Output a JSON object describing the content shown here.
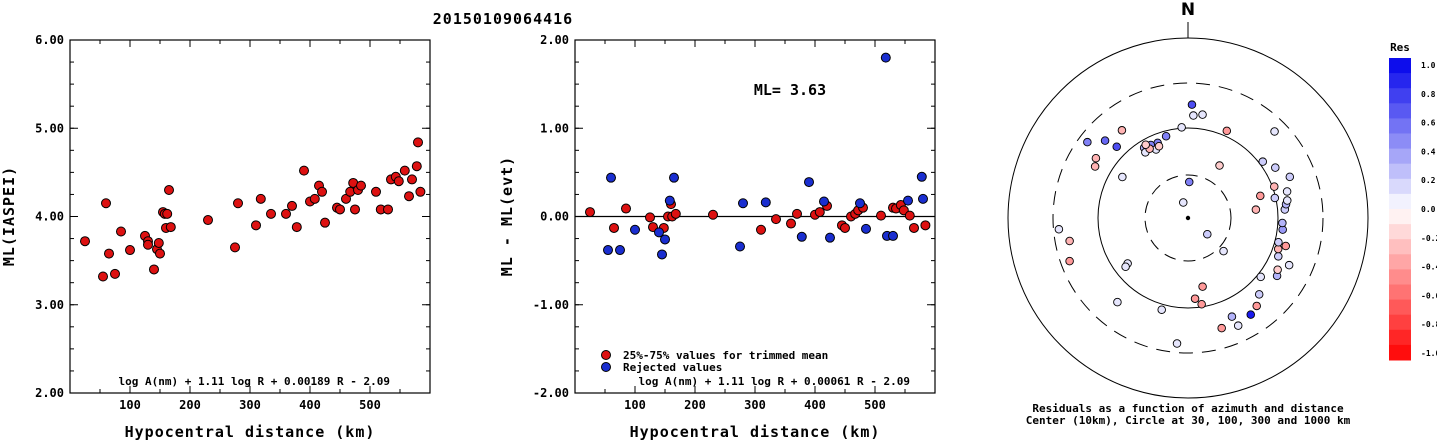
{
  "title": "20150109064416",
  "colors": {
    "accepted": "#dd1111",
    "rejected": "#1a2ed0",
    "ink": "#000000"
  },
  "chart_data": [
    {
      "type": "scatter",
      "xlabel": "Hypocentral distance (km)",
      "ylabel": "ML(IASPEI)",
      "xlim": [
        0,
        600
      ],
      "ylim": [
        2,
        6
      ],
      "xticks": [
        "100",
        "200",
        "300",
        "400",
        "500"
      ],
      "yticks": [
        "2.00",
        "3.00",
        "4.00",
        "5.00",
        "6.00"
      ],
      "formula": "log A(nm) + 1.11 log R + 0.00189 R - 2.09",
      "series": [
        {
          "points": [
            [
              25,
              3.72
            ],
            [
              55,
              3.32
            ],
            [
              60,
              4.15
            ],
            [
              65,
              3.58
            ],
            [
              75,
              3.35
            ],
            [
              85,
              3.83
            ],
            [
              100,
              3.62
            ],
            [
              125,
              3.78
            ],
            [
              130,
              3.72
            ],
            [
              130,
              3.68
            ],
            [
              140,
              3.4
            ],
            [
              145,
              3.63
            ],
            [
              148,
              3.7
            ],
            [
              150,
              3.58
            ],
            [
              155,
              4.05
            ],
            [
              158,
              4.03
            ],
            [
              160,
              3.87
            ],
            [
              162,
              4.03
            ],
            [
              165,
              4.3
            ],
            [
              168,
              3.88
            ],
            [
              230,
              3.96
            ],
            [
              275,
              3.65
            ],
            [
              280,
              4.15
            ],
            [
              310,
              3.9
            ],
            [
              318,
              4.2
            ],
            [
              335,
              4.03
            ],
            [
              360,
              4.03
            ],
            [
              370,
              4.12
            ],
            [
              378,
              3.88
            ],
            [
              390,
              4.52
            ],
            [
              400,
              4.17
            ],
            [
              408,
              4.2
            ],
            [
              415,
              4.35
            ],
            [
              420,
              4.28
            ],
            [
              425,
              3.93
            ],
            [
              445,
              4.1
            ],
            [
              450,
              4.08
            ],
            [
              460,
              4.2
            ],
            [
              467,
              4.28
            ],
            [
              472,
              4.38
            ],
            [
              475,
              4.08
            ],
            [
              480,
              4.3
            ],
            [
              485,
              4.35
            ],
            [
              510,
              4.28
            ],
            [
              518,
              4.08
            ],
            [
              530,
              4.08
            ],
            [
              535,
              4.42
            ],
            [
              543,
              4.45
            ],
            [
              548,
              4.4
            ],
            [
              558,
              4.52
            ],
            [
              565,
              4.23
            ],
            [
              570,
              4.42
            ],
            [
              578,
              4.57
            ],
            [
              580,
              4.84
            ],
            [
              584,
              4.28
            ]
          ]
        }
      ]
    },
    {
      "type": "scatter",
      "xlabel": "Hypocentral distance (km)",
      "ylabel": "ML - ML(evt)",
      "xlim": [
        0,
        600
      ],
      "ylim": [
        -2,
        2
      ],
      "xticks": [
        "100",
        "200",
        "300",
        "400",
        "500"
      ],
      "yticks": [
        "-2.00",
        "-1.00",
        "0.00",
        "1.00",
        "2.00"
      ],
      "annotation": "ML= 3.63",
      "legend": [
        "25%-75% values for trimmed mean",
        "Rejected values"
      ],
      "formula": "log A(nm) + 1.11 log R + 0.00061 R - 2.09",
      "series": [
        {
          "name": "25%-75% values for trimmed mean",
          "points": [
            [
              25,
              0.05
            ],
            [
              65,
              -0.13
            ],
            [
              85,
              0.09
            ],
            [
              125,
              -0.01
            ],
            [
              130,
              -0.12
            ],
            [
              148,
              -0.13
            ],
            [
              155,
              0.0
            ],
            [
              160,
              0.14
            ],
            [
              162,
              0.0
            ],
            [
              168,
              0.03
            ],
            [
              230,
              0.02
            ],
            [
              310,
              -0.15
            ],
            [
              335,
              -0.03
            ],
            [
              360,
              -0.08
            ],
            [
              370,
              0.03
            ],
            [
              400,
              0.02
            ],
            [
              408,
              0.05
            ],
            [
              420,
              0.12
            ],
            [
              445,
              -0.1
            ],
            [
              450,
              -0.13
            ],
            [
              460,
              0.0
            ],
            [
              467,
              0.03
            ],
            [
              472,
              0.07
            ],
            [
              480,
              0.1
            ],
            [
              510,
              0.01
            ],
            [
              530,
              0.1
            ],
            [
              535,
              0.09
            ],
            [
              543,
              0.13
            ],
            [
              548,
              0.07
            ],
            [
              558,
              0.01
            ],
            [
              565,
              -0.13
            ],
            [
              584,
              -0.1
            ]
          ]
        },
        {
          "name": "Rejected values",
          "points": [
            [
              55,
              -0.38
            ],
            [
              60,
              0.44
            ],
            [
              75,
              -0.38
            ],
            [
              100,
              -0.15
            ],
            [
              140,
              -0.18
            ],
            [
              145,
              -0.43
            ],
            [
              150,
              -0.26
            ],
            [
              158,
              0.18
            ],
            [
              165,
              0.44
            ],
            [
              275,
              -0.34
            ],
            [
              280,
              0.15
            ],
            [
              318,
              0.16
            ],
            [
              378,
              -0.23
            ],
            [
              390,
              0.39
            ],
            [
              415,
              0.17
            ],
            [
              425,
              -0.24
            ],
            [
              475,
              0.15
            ],
            [
              485,
              -0.14
            ],
            [
              518,
              1.8
            ],
            [
              520,
              -0.22
            ],
            [
              530,
              -0.22
            ],
            [
              555,
              0.18
            ],
            [
              578,
              0.45
            ],
            [
              580,
              0.2
            ]
          ]
        }
      ]
    },
    {
      "type": "scatter",
      "north_label": "N",
      "caption_line1": "Residuals as a function of azimuth and distance",
      "caption_line2": "Center (10km), Circle at 30, 100, 300 and 1000 km",
      "colorbar": {
        "title": "Res",
        "ticks": [
          "1.0",
          "0.8",
          "0.6",
          "0.4",
          "0.2",
          "0.0",
          "-0.2",
          "-0.4",
          "-0.6",
          "-0.8",
          "-1.0"
        ]
      },
      "series": [
        {
          "points": [
            [
              2,
              630,
              0.7
            ],
            [
              8,
              580,
              0.1
            ],
            [
              3,
              570,
              0.1
            ],
            [
              356,
              505,
              0.1
            ],
            [
              345,
              470,
              0.5
            ],
            [
              338,
              450,
              0.5
            ],
            [
              333,
              455,
              0.5
            ],
            [
              328,
              460,
              0.3
            ],
            [
              327,
              435,
              0.1
            ],
            [
              335,
              420,
              0.1
            ],
            [
              338,
              430,
              -0.2
            ],
            [
              331,
              440,
              -0.3
            ],
            [
              330,
              470,
              -0.2
            ],
            [
              323,
              610,
              -0.3
            ],
            [
              313,
              630,
              0.6
            ],
            [
              307,
              700,
              0.5
            ],
            [
              315,
              560,
              0.7
            ],
            [
              302,
              430,
              0.1
            ],
            [
              303,
              610,
              -0.3
            ],
            [
              299,
              590,
              -0.3
            ],
            [
              259,
              670,
              -0.3
            ],
            [
              250,
              700,
              -0.4
            ],
            [
              265,
              720,
              0.1
            ],
            [
              233,
              420,
              0.1
            ],
            [
              232,
              440,
              0.1
            ],
            [
              220,
              610,
              0.1
            ],
            [
              196,
              530,
              0.1
            ],
            [
              185,
              700,
              0.1
            ],
            [
              175,
              450,
              -0.4
            ],
            [
              171,
              485,
              -0.4
            ],
            [
              168,
              390,
              -0.4
            ],
            [
              163,
              640,
              -0.4
            ],
            [
              156,
              600,
              0.3
            ],
            [
              155,
              660,
              0.1
            ],
            [
              147,
              640,
              0.9
            ],
            [
              142,
              620,
              -0.4
            ],
            [
              137,
              580,
              0.2
            ],
            [
              129,
              520,
              0.1
            ],
            [
              123,
              590,
              0.3
            ],
            [
              120,
              575,
              -0.2
            ],
            [
              115,
              620,
              0.1
            ],
            [
              113,
              545,
              0.2
            ],
            [
              109,
              530,
              -0.3
            ],
            [
              106,
              565,
              -0.4
            ],
            [
              105,
              520,
              0.2
            ],
            [
              97,
              530,
              0.4
            ],
            [
              93,
              525,
              0.3
            ],
            [
              85,
              540,
              0.2
            ],
            [
              82,
              550,
              0.3
            ],
            [
              80,
              560,
              0.1
            ],
            [
              77,
              495,
              0.2
            ],
            [
              75,
              570,
              0.1
            ],
            [
              68,
              610,
              0.2
            ],
            [
              60,
              560,
              0.2
            ],
            [
              53,
              520,
              0.2
            ],
            [
              45,
              680,
              0.1
            ],
            [
              31,
              340,
              -0.2
            ],
            [
              24,
              530,
              -0.4
            ],
            [
              2,
              200,
              0.5
            ],
            [
              343,
              90,
              0.1
            ],
            [
              83,
              380,
              -0.3
            ],
            [
              73,
              420,
              -0.4
            ],
            [
              130,
              140,
              0.2
            ],
            [
              133,
              270,
              0.1
            ],
            [
              70,
              510,
              -0.3
            ]
          ]
        }
      ]
    }
  ]
}
